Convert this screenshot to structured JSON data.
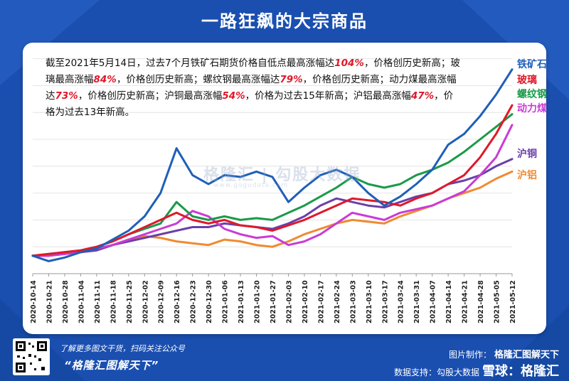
{
  "title": "一路狂飙的大宗商品",
  "description": {
    "p1": "截至2021年5月14日，过去7个月铁矿石期货价格自低点最高涨幅达",
    "v1": "104%",
    "p2": "，价格创历史新高；玻璃最高涨幅",
    "v2": "84%",
    "p3": "，价格创历史新高；螺纹钢最高涨幅达",
    "v3": "79%",
    "p4": "，价格创历史新高；动力煤最高涨幅达",
    "v4": "73%",
    "p5": "，价格创历史新高；沪铜最高涨幅",
    "v5": "54%",
    "p6": "，价格为过去15年新高；沪铝最高涨幅",
    "v6": "47%",
    "p7": "，价格为过去13年新高。"
  },
  "watermark": {
    "text": "格隆汇  |  勾股大数据",
    "sub": "www.gogudata.com"
  },
  "footer": {
    "line1": "了解更多图文干货，扫码关注公众号",
    "line2": "“格隆汇图解天下”",
    "credit_label": "图片制作：",
    "credit_name": "格隆汇图解天下",
    "source_label": "数据支持：勾股大数据",
    "brand": "雪球：格隆汇"
  },
  "colors": {
    "background": "#1a4fb0",
    "card": "#ffffff",
    "highlight": "#e0182a"
  },
  "chart_data": {
    "type": "line",
    "x": [
      "2020-10-14",
      "2020-10-21",
      "2020-10-28",
      "2020-11-04",
      "2020-11-11",
      "2020-11-18",
      "2020-11-25",
      "2020-12-02",
      "2020-12-09",
      "2020-12-16",
      "2020-12-23",
      "2020-12-30",
      "2021-01-06",
      "2021-01-13",
      "2021-01-20",
      "2021-01-27",
      "2021-02-03",
      "2021-02-10",
      "2021-02-17",
      "2021-02-24",
      "2021-03-03",
      "2021-03-10",
      "2021-03-17",
      "2021-03-24",
      "2021-03-31",
      "2021-04-07",
      "2021-04-14",
      "2021-04-21",
      "2021-04-28",
      "2021-05-05",
      "2021-05-12"
    ],
    "series": [
      {
        "name": "铁矿石",
        "color": "#1f5fb8",
        "values": [
          0,
          -3,
          -1,
          2,
          4,
          9,
          14,
          22,
          35,
          60,
          45,
          40,
          45,
          44,
          47,
          44,
          30,
          38,
          45,
          48,
          44,
          35,
          28,
          33,
          40,
          48,
          62,
          68,
          78,
          90,
          104
        ]
      },
      {
        "name": "玻璃",
        "color": "#e0182a",
        "values": [
          0,
          1,
          2,
          3,
          5,
          8,
          12,
          16,
          20,
          24,
          20,
          18,
          20,
          17,
          16,
          14,
          17,
          20,
          24,
          28,
          32,
          31,
          30,
          28,
          32,
          35,
          40,
          45,
          55,
          68,
          84
        ]
      },
      {
        "name": "螺纹钢",
        "color": "#1a9a4a",
        "values": [
          0,
          1,
          2,
          3,
          5,
          8,
          12,
          15,
          18,
          30,
          22,
          20,
          22,
          20,
          21,
          20,
          24,
          28,
          33,
          38,
          44,
          40,
          38,
          40,
          45,
          48,
          52,
          58,
          65,
          72,
          79
        ]
      },
      {
        "name": "动力煤",
        "color": "#c93cd6",
        "values": [
          0,
          0,
          1,
          2,
          4,
          6,
          9,
          12,
          15,
          18,
          25,
          22,
          15,
          12,
          10,
          11,
          6,
          8,
          12,
          18,
          24,
          22,
          20,
          24,
          26,
          28,
          32,
          36,
          45,
          55,
          73
        ]
      },
      {
        "name": "沪铜",
        "color": "#6b3fa8",
        "values": [
          0,
          0,
          1,
          2,
          3,
          6,
          8,
          10,
          12,
          14,
          16,
          16,
          18,
          17,
          16,
          15,
          18,
          22,
          28,
          32,
          30,
          28,
          27,
          30,
          33,
          35,
          40,
          42,
          45,
          50,
          54
        ]
      },
      {
        "name": "沪铝",
        "color": "#f08a30",
        "values": [
          0,
          0,
          1,
          2,
          3,
          6,
          9,
          11,
          10,
          8,
          7,
          6,
          9,
          8,
          6,
          5,
          8,
          12,
          15,
          18,
          20,
          19,
          18,
          22,
          25,
          28,
          32,
          35,
          38,
          43,
          47
        ]
      }
    ],
    "ylim": [
      -10,
      115
    ],
    "grid": true,
    "legend": "right"
  }
}
